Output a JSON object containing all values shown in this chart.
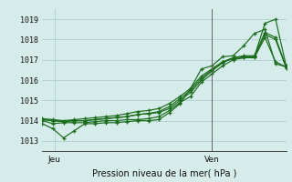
{
  "xlabel": "Pression niveau de la mer( hPa )",
  "background_color": "#d5ecea",
  "grid_color": "#a8cccc",
  "line_color": "#1a6b1a",
  "vline_color": "#666666",
  "ylim": [
    1012.5,
    1019.5
  ],
  "yticks": [
    1013,
    1014,
    1015,
    1016,
    1017,
    1018,
    1019
  ],
  "xtick_labels": [
    "Jeu",
    "Ven"
  ],
  "xtick_positions": [
    0.05,
    0.695
  ],
  "vline_x": 0.695,
  "n_points": 24,
  "series": [
    [
      1013.85,
      1013.6,
      1013.15,
      1013.5,
      1013.85,
      1013.85,
      1013.9,
      1013.9,
      1013.95,
      1014.0,
      1014.0,
      1014.05,
      1014.4,
      1014.85,
      1015.6,
      1016.55,
      1016.7,
      1017.15,
      1017.2,
      1017.7,
      1018.3,
      1018.5,
      1016.8,
      1016.65
    ],
    [
      1014.0,
      1013.85,
      1013.9,
      1013.9,
      1013.9,
      1013.95,
      1014.0,
      1014.0,
      1014.05,
      1014.05,
      1014.1,
      1014.2,
      1014.5,
      1014.9,
      1015.2,
      1015.9,
      1016.3,
      1016.7,
      1017.0,
      1017.1,
      1017.1,
      1018.1,
      1016.9,
      1016.65
    ],
    [
      1014.05,
      1014.0,
      1013.95,
      1014.0,
      1014.0,
      1014.05,
      1014.1,
      1014.15,
      1014.2,
      1014.3,
      1014.35,
      1014.4,
      1014.6,
      1015.0,
      1015.4,
      1016.0,
      1016.45,
      1016.85,
      1017.1,
      1017.15,
      1017.15,
      1018.25,
      1018.0,
      1016.6
    ],
    [
      1014.1,
      1014.05,
      1014.0,
      1014.05,
      1014.1,
      1014.15,
      1014.2,
      1014.25,
      1014.35,
      1014.45,
      1014.5,
      1014.6,
      1014.85,
      1015.2,
      1015.6,
      1016.2,
      1016.55,
      1016.9,
      1017.1,
      1017.2,
      1017.2,
      1018.35,
      1018.1,
      1016.65
    ],
    [
      1014.05,
      1014.0,
      1013.95,
      1014.0,
      1014.0,
      1014.05,
      1014.1,
      1014.15,
      1014.2,
      1014.3,
      1014.35,
      1014.45,
      1014.7,
      1015.1,
      1015.5,
      1016.1,
      1016.5,
      1016.9,
      1017.05,
      1017.1,
      1017.15,
      1018.8,
      1019.0,
      1016.7
    ]
  ]
}
